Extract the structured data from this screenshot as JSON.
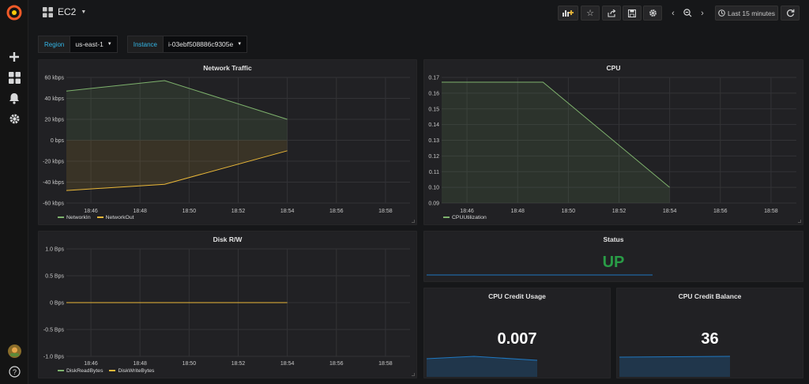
{
  "header": {
    "title": "EC2",
    "time_range": "Last 15 minutes"
  },
  "variables": [
    {
      "label": "Region",
      "value": "us-east-1"
    },
    {
      "label": "Instance",
      "value": "i-03ebf508886c9305e"
    }
  ],
  "panels": {
    "network": {
      "title": "Network Traffic"
    },
    "cpu": {
      "title": "CPU"
    },
    "disk": {
      "title": "Disk R/W"
    },
    "status": {
      "title": "Status",
      "value": "UP"
    },
    "credit_usage": {
      "title": "CPU Credit Usage",
      "value": "0.007"
    },
    "credit_balance": {
      "title": "CPU Credit Balance",
      "value": "36"
    }
  },
  "colors": {
    "green": "#7eb26d",
    "yellow": "#eab839",
    "blue": "#1f78c1",
    "status_green": "#299c46"
  },
  "chart_data": [
    {
      "type": "area",
      "title": "Network Traffic",
      "x": [
        "18:45",
        "18:49",
        "18:54"
      ],
      "x_ticks": [
        "18:46",
        "18:48",
        "18:50",
        "18:52",
        "18:54",
        "18:56",
        "18:58"
      ],
      "y_ticks": [
        "60 kbps",
        "40 kbps",
        "20 kbps",
        "0 bps",
        "-20 kbps",
        "-40 kbps",
        "-60 kbps"
      ],
      "ylim": [
        -60,
        60
      ],
      "series": [
        {
          "name": "NetworkIn",
          "values": [
            47,
            57,
            20
          ],
          "color": "#7eb26d"
        },
        {
          "name": "NetworkOut",
          "values": [
            -48,
            -42,
            -10
          ],
          "color": "#eab839"
        }
      ]
    },
    {
      "type": "area",
      "title": "CPU",
      "x": [
        "18:45",
        "18:49",
        "18:54"
      ],
      "x_ticks": [
        "18:46",
        "18:48",
        "18:50",
        "18:52",
        "18:54",
        "18:56",
        "18:58"
      ],
      "y_ticks": [
        "0.17",
        "0.16",
        "0.15",
        "0.14",
        "0.13",
        "0.12",
        "0.11",
        "0.10",
        "0.09"
      ],
      "ylim": [
        0.09,
        0.17
      ],
      "series": [
        {
          "name": "CPUUtilization",
          "values": [
            0.167,
            0.167,
            0.1
          ],
          "color": "#7eb26d"
        }
      ]
    },
    {
      "type": "line",
      "title": "Disk R/W",
      "x": [
        "18:45",
        "18:54"
      ],
      "x_ticks": [
        "18:46",
        "18:48",
        "18:50",
        "18:52",
        "18:54",
        "18:56",
        "18:58"
      ],
      "y_ticks": [
        "1.0 Bps",
        "0.5 Bps",
        "0 Bps",
        "-0.5 Bps",
        "-1.0 Bps"
      ],
      "ylim": [
        -1,
        1
      ],
      "series": [
        {
          "name": "DiskReadBytes",
          "values": [
            0,
            0
          ],
          "color": "#7eb26d"
        },
        {
          "name": "DiskWriteBytes",
          "values": [
            0,
            0
          ],
          "color": "#eab839"
        }
      ]
    }
  ]
}
